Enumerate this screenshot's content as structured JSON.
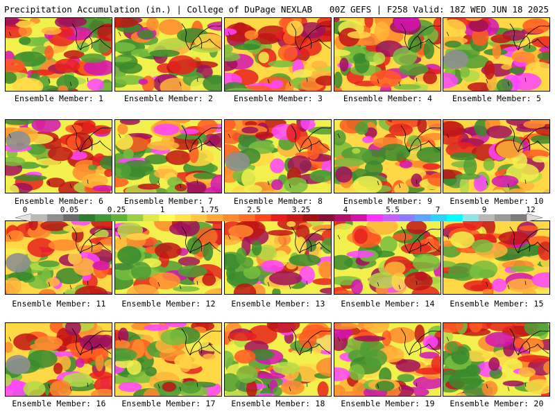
{
  "header": {
    "title_left": "Precipitation Accumulation (in.) | College of DuPage NEXLAB",
    "title_right": "00Z GEFS | F258 Valid: 18Z WED JUN 18 2025"
  },
  "colorbar": {
    "tick_labels": [
      "0",
      "0.05",
      "0.25",
      "1",
      "1.75",
      "2.5",
      "3.25",
      "4",
      "5.5",
      "7",
      "9",
      "12"
    ],
    "colors": [
      "#e3e3e3",
      "#b9b9b9",
      "#8f8f8f",
      "#6b6b6b",
      "#2e7d2e",
      "#3f9a35",
      "#61b23b",
      "#9bd045",
      "#e2e94a",
      "#fffb53",
      "#ffe24a",
      "#ffc641",
      "#ffa838",
      "#ff8b2e",
      "#ff6f25",
      "#ff461f",
      "#e81e1e",
      "#c81818",
      "#a51212",
      "#8a0e3a",
      "#b0106a",
      "#d214a6",
      "#ff33ff",
      "#c560ff",
      "#8d7cff",
      "#5fa4ff",
      "#2fd1ff",
      "#00ffff",
      "#8fe5e5",
      "#b8b8b8",
      "#9a9a9a",
      "#7c7c7c",
      "#dcdcdc"
    ]
  },
  "panels": [
    {
      "label": "Ensemble Member: 1"
    },
    {
      "label": "Ensemble Member: 2"
    },
    {
      "label": "Ensemble Member: 3"
    },
    {
      "label": "Ensemble Member: 4"
    },
    {
      "label": "Ensemble Member: 5"
    },
    {
      "label": "Ensemble Member: 6"
    },
    {
      "label": "Ensemble Member: 7"
    },
    {
      "label": "Ensemble Member: 8"
    },
    {
      "label": "Ensemble Member: 9"
    },
    {
      "label": "Ensemble Member: 10"
    },
    {
      "label": "Ensemble Member: 11"
    },
    {
      "label": "Ensemble Member: 12"
    },
    {
      "label": "Ensemble Member: 13"
    },
    {
      "label": "Ensemble Member: 14"
    },
    {
      "label": "Ensemble Member: 15"
    },
    {
      "label": "Ensemble Member: 16"
    },
    {
      "label": "Ensemble Member: 17"
    },
    {
      "label": "Ensemble Member: 18"
    },
    {
      "label": "Ensemble Member: 19"
    },
    {
      "label": "Ensemble Member: 20"
    }
  ]
}
